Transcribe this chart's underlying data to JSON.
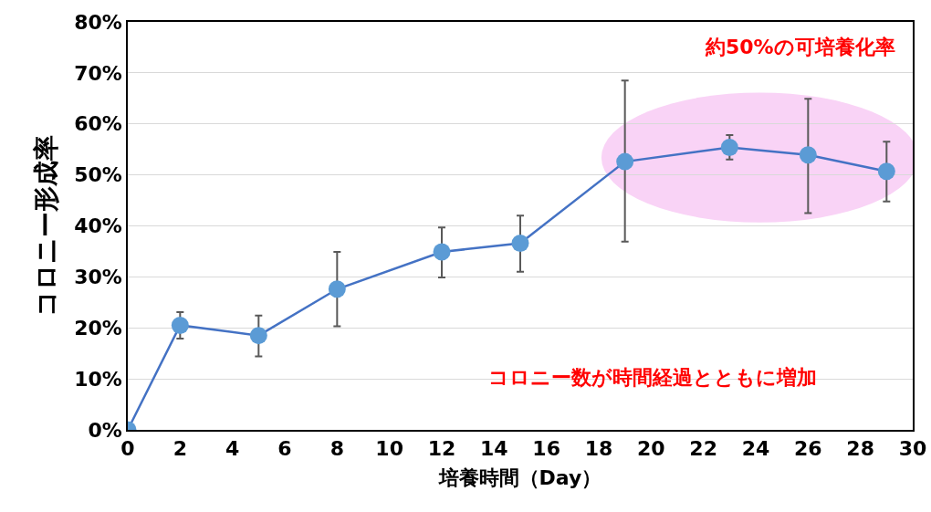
{
  "chart_data": {
    "type": "line",
    "xlabel": "培養時間（Day）",
    "ylabel": "コロニー形成率",
    "x": [
      0,
      2,
      5,
      8,
      12,
      15,
      19,
      23,
      26,
      29
    ],
    "series": [
      {
        "color": "#4472c4",
        "values": [
          0,
          20.5,
          18.5,
          27.6,
          34.9,
          36.6,
          52.6,
          55.4,
          53.9,
          50.7
        ],
        "errors": [
          null,
          [
            17.9,
            23.1
          ],
          [
            14.4,
            22.4
          ],
          [
            20.3,
            34.9
          ],
          [
            29.9,
            39.7
          ],
          [
            31.0,
            42.0
          ],
          [
            36.9,
            68.5
          ],
          [
            53.0,
            57.8
          ],
          [
            42.5,
            64.9
          ],
          [
            44.8,
            56.5
          ]
        ]
      }
    ],
    "marker": "circle",
    "grid": "y",
    "xlim": [
      0,
      30
    ],
    "xticks": [
      0,
      2,
      4,
      6,
      8,
      10,
      12,
      14,
      16,
      18,
      20,
      22,
      24,
      26,
      28,
      30
    ],
    "ylim": [
      0,
      80
    ],
    "yticks": [
      {
        "value": 0,
        "label": "0%"
      },
      {
        "value": 10,
        "label": "10%"
      },
      {
        "value": 20,
        "label": "20%"
      },
      {
        "value": 30,
        "label": "30%"
      },
      {
        "value": 40,
        "label": "40%"
      },
      {
        "value": 50,
        "label": "50%"
      },
      {
        "value": 60,
        "label": "60%"
      },
      {
        "value": 70,
        "label": "70%"
      },
      {
        "value": 80,
        "label": "80%"
      }
    ],
    "annotations": [
      "約50%の可培養化率",
      "コロニー数が時間経過とともに増加"
    ]
  }
}
